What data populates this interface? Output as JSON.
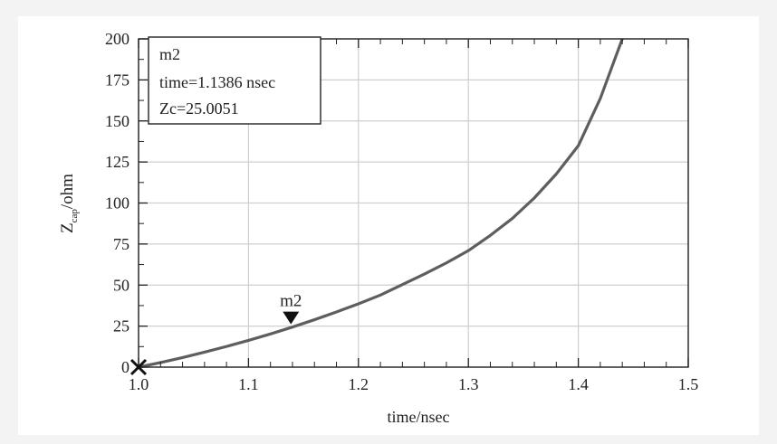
{
  "chart_data": {
    "type": "line",
    "xlabel": "time/nsec",
    "ylabel": "Z",
    "ylabel_sub": "cap",
    "ylabel_unit": "/ohm",
    "xlim": [
      1.0,
      1.5
    ],
    "ylim": [
      0,
      200
    ],
    "x_ticks": [
      1.0,
      1.1,
      1.2,
      1.3,
      1.4,
      1.5
    ],
    "x_tick_labels": [
      "1.0",
      "1.1",
      "1.2",
      "1.3",
      "1.4",
      "1.5"
    ],
    "y_ticks": [
      0,
      25,
      50,
      75,
      100,
      125,
      150,
      175,
      200
    ],
    "y_tick_labels": [
      "0",
      "25",
      "50",
      "75",
      "100",
      "125",
      "150",
      "175",
      "200"
    ],
    "grid": true,
    "series": [
      {
        "color": "#5e5e5e",
        "x": [
          1.0,
          1.02,
          1.04,
          1.06,
          1.08,
          1.1,
          1.12,
          1.14,
          1.16,
          1.18,
          1.2,
          1.22,
          1.24,
          1.26,
          1.28,
          1.3,
          1.32,
          1.34,
          1.36,
          1.38,
          1.4,
          1.42,
          1.44
        ],
        "y": [
          0,
          2.8,
          5.8,
          9.1,
          12.6,
          16.3,
          20.2,
          24.4,
          28.9,
          33.6,
          38.6,
          43.9,
          50.3,
          56.7,
          63.5,
          71.0,
          80.3,
          90.6,
          103.1,
          117.7,
          134.9,
          163.7,
          200
        ]
      }
    ],
    "start_marker": {
      "x": 1.0,
      "y": 0
    },
    "marker": {
      "name": "m2",
      "x": 1.1386,
      "y": 25.0051,
      "readout_title": "m2",
      "readout_line1": "time=1.1386 nsec",
      "readout_line2": "Zc=25.0051"
    }
  }
}
